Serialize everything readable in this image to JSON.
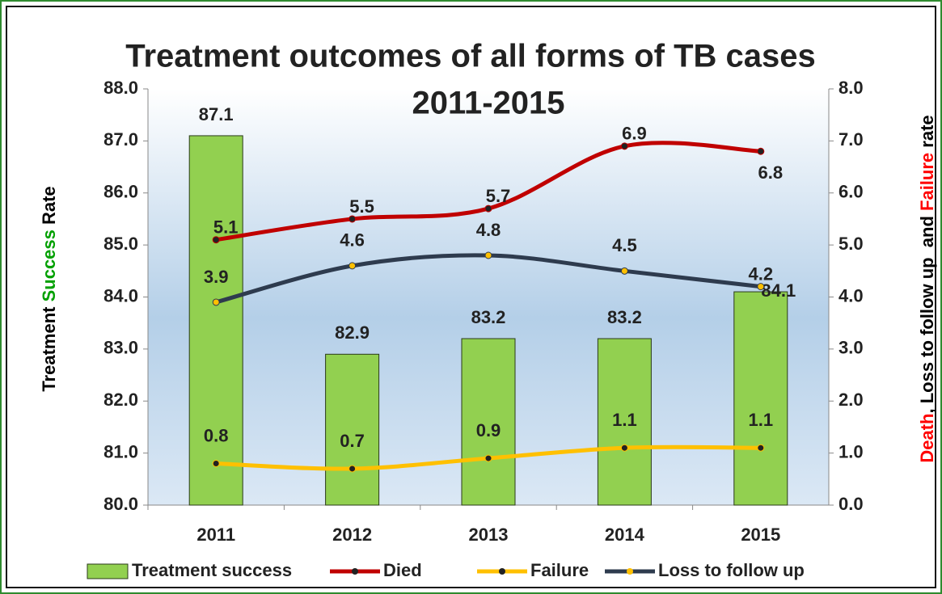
{
  "chart_data": {
    "type": "bar_line",
    "title": "Treatment outcomes of all forms of TB cases",
    "subtitle": "2011-2015",
    "ylabel_parts": [
      {
        "text": "Treatment ",
        "color": "#000000"
      },
      {
        "text": "Success",
        "color": "#00a000"
      },
      {
        "text": " Rate",
        "color": "#000000"
      }
    ],
    "y2label_parts": [
      {
        "text": "Death",
        "color": "#ff0000"
      },
      {
        "text": ", Loss to follow up  and ",
        "color": "#000000"
      },
      {
        "text": "Failure",
        "color": "#ff0000"
      },
      {
        "text": " rate",
        "color": "#000000"
      }
    ],
    "categories": [
      "2011",
      "2012",
      "2013",
      "2014",
      "2015"
    ],
    "series": [
      {
        "name": "Treatment success",
        "type": "bar",
        "axis": "y",
        "color": "#92d050",
        "values": [
          87.1,
          82.9,
          83.2,
          83.2,
          84.1
        ]
      },
      {
        "name": "Died",
        "type": "line",
        "axis": "y2",
        "color": "#c00000",
        "values": [
          5.1,
          5.5,
          5.7,
          6.9,
          6.8
        ]
      },
      {
        "name": "Failure",
        "type": "line",
        "axis": "y2",
        "color": "#ffc000",
        "values": [
          0.8,
          0.7,
          0.9,
          1.1,
          1.1
        ]
      },
      {
        "name": "Loss to follow up",
        "type": "line",
        "axis": "y2",
        "color": "#2e3b4e",
        "values": [
          3.9,
          4.6,
          4.8,
          4.5,
          4.2
        ]
      }
    ],
    "ylim": [
      80,
      88
    ],
    "yticks": [
      {
        "value": 80,
        "label": "80.0"
      },
      {
        "value": 81,
        "label": "81.0"
      },
      {
        "value": 82,
        "label": "82.0"
      },
      {
        "value": 83,
        "label": "83.0"
      },
      {
        "value": 84,
        "label": "84.0"
      },
      {
        "value": 85,
        "label": "85.0"
      },
      {
        "value": 86,
        "label": "86.0"
      },
      {
        "value": 87,
        "label": "87.0"
      },
      {
        "value": 88,
        "label": "88.0"
      }
    ],
    "y2lim": [
      0,
      8
    ],
    "y2ticks": [
      {
        "value": 0,
        "label": "0.0"
      },
      {
        "value": 1,
        "label": "1.0"
      },
      {
        "value": 2,
        "label": "2.0"
      },
      {
        "value": 3,
        "label": "3.0"
      },
      {
        "value": 4,
        "label": "4.0"
      },
      {
        "value": 5,
        "label": "5.0"
      },
      {
        "value": 6,
        "label": "6.0"
      },
      {
        "value": 7,
        "label": "7.0"
      },
      {
        "value": 8,
        "label": "8.0"
      }
    ],
    "legend": "bottom"
  }
}
